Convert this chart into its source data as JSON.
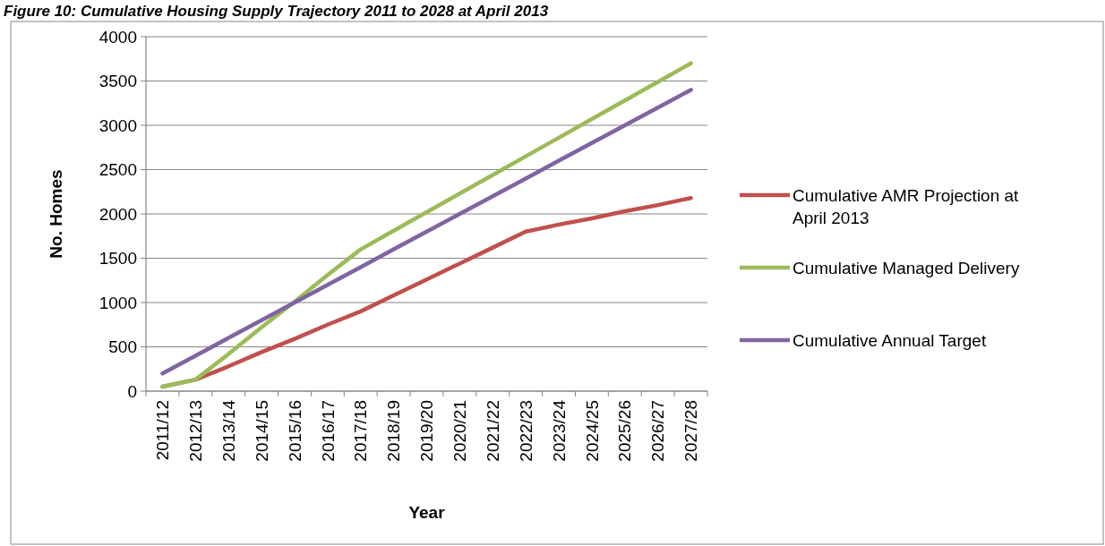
{
  "chart_data": {
    "type": "line",
    "title": "Figure 10: Cumulative Housing Supply Trajectory 2011 to 2028 at April 2013",
    "xlabel": "Year",
    "ylabel": "No. Homes",
    "categories": [
      "2011/12",
      "2012/13",
      "2013/14",
      "2014/15",
      "2015/16",
      "2016/17",
      "2017/18",
      "2018/19",
      "2019/20",
      "2020/21",
      "2021/22",
      "2022/23",
      "2023/24",
      "2024/25",
      "2025/26",
      "2026/27",
      "2027/28"
    ],
    "series": [
      {
        "name": "Cumulative AMR Projection at April 2013",
        "color": "#c0504d",
        "values": [
          50,
          130,
          280,
          440,
          590,
          750,
          900,
          1080,
          1260,
          1440,
          1620,
          1800,
          1880,
          1950,
          2030,
          2100,
          2180
        ]
      },
      {
        "name": "Cumulative Managed Delivery",
        "color": "#9bbb59",
        "values": [
          50,
          130,
          420,
          720,
          1010,
          1310,
          1600,
          1810,
          2020,
          2230,
          2440,
          2650,
          2860,
          3070,
          3280,
          3490,
          3700
        ]
      },
      {
        "name": "Cumulative Annual Target",
        "color": "#8064a2",
        "values": [
          200,
          400,
          600,
          800,
          1000,
          1200,
          1400,
          1600,
          1800,
          2000,
          2200,
          2400,
          2600,
          2800,
          3000,
          3200,
          3400
        ]
      }
    ],
    "ylim": [
      0,
      4000
    ],
    "yticks": [
      0,
      500,
      1000,
      1500,
      2000,
      2500,
      3000,
      3500,
      4000
    ],
    "grid": "y",
    "legend": "right",
    "marker": "none",
    "line_style": "solid"
  }
}
